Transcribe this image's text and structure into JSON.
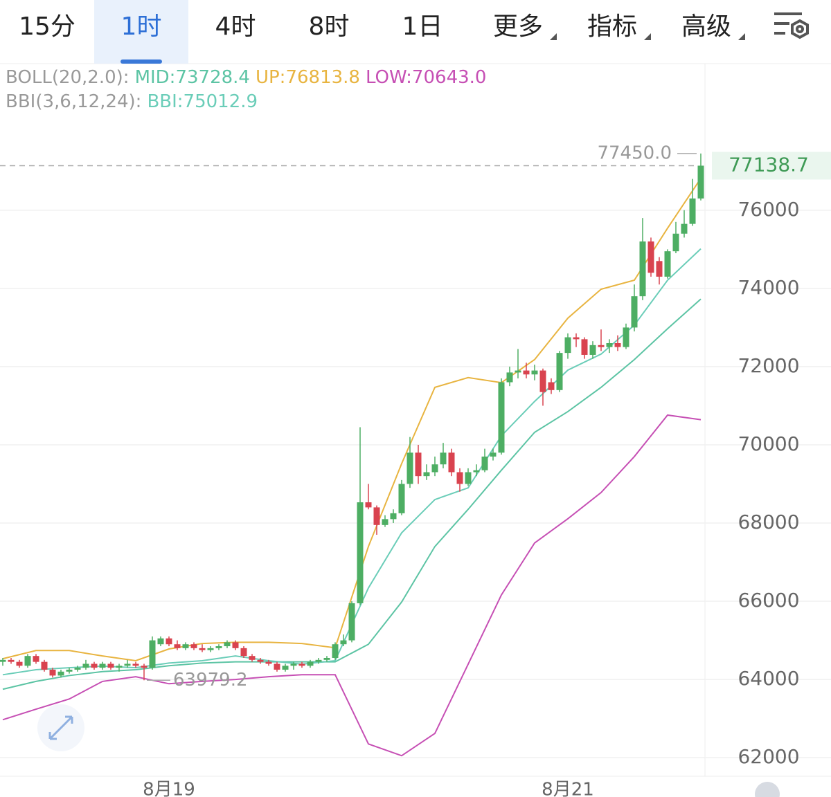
{
  "tabs": [
    "15分",
    "1时",
    "4时",
    "8时",
    "1日",
    "更多",
    "指标",
    "高级"
  ],
  "active_tab": 1,
  "chart_data": {
    "type": "candlestick",
    "categories": [
      null,
      null,
      null,
      null,
      null,
      null,
      null,
      null,
      null,
      null,
      null,
      null,
      null,
      null,
      null,
      null,
      null,
      null,
      null,
      null,
      "8月19",
      null,
      null,
      null,
      null,
      null,
      null,
      null,
      null,
      null,
      null,
      null,
      null,
      null,
      null,
      null,
      null,
      null,
      null,
      null,
      null,
      null,
      null,
      null,
      null,
      null,
      null,
      null,
      null,
      null,
      null,
      null,
      null,
      null,
      null,
      null,
      null,
      null,
      null,
      null,
      null,
      null,
      null,
      null,
      null,
      null,
      null,
      null,
      "8月21",
      null,
      null,
      null,
      null,
      null,
      null,
      null,
      null,
      null,
      null,
      null,
      null,
      null,
      null,
      null,
      null
    ],
    "open": [
      64450,
      64500,
      64450,
      64350,
      64600,
      64450,
      64250,
      64100,
      64200,
      64250,
      64300,
      64400,
      64300,
      64400,
      64300,
      64350,
      64400,
      64350,
      64300,
      64900,
      65050,
      64900,
      64800,
      64900,
      64800,
      64750,
      64800,
      64850,
      64950,
      64800,
      64600,
      64500,
      64450,
      64400,
      64250,
      64350,
      64400,
      64350,
      64450,
      64500,
      64550,
      64900,
      65000,
      65950,
      68530,
      68400,
      67950,
      68100,
      68250,
      69000,
      69800,
      69200,
      69300,
      69500,
      69800,
      69300,
      69000,
      69300,
      69350,
      69700,
      69800,
      71600,
      71850,
      71900,
      71800,
      71900,
      71600,
      71400,
      72350,
      72750,
      72700,
      72300,
      72550,
      72500,
      72600,
      72500,
      73000,
      73800,
      75200,
      74700,
      74300,
      74950,
      75400,
      75650,
      76300
    ],
    "high": [
      64550,
      64550,
      64500,
      64650,
      64650,
      64500,
      64300,
      64250,
      64300,
      64350,
      64500,
      64450,
      64450,
      64450,
      64400,
      64500,
      64450,
      64400,
      65100,
      65100,
      65100,
      65000,
      64950,
      64950,
      64900,
      64850,
      64900,
      65000,
      65000,
      64850,
      64650,
      64550,
      64500,
      64450,
      64400,
      64450,
      64450,
      64500,
      64550,
      64600,
      64950,
      65150,
      66000,
      70450,
      69000,
      68450,
      68200,
      68350,
      69100,
      70200,
      70000,
      69500,
      69700,
      70050,
      69900,
      69400,
      69400,
      69500,
      69900,
      69900,
      71700,
      72000,
      72450,
      72100,
      72050,
      71950,
      71700,
      72400,
      72850,
      72850,
      72750,
      72650,
      72950,
      72700,
      72800,
      73100,
      74100,
      75800,
      75300,
      74800,
      75000,
      75700,
      76000,
      76800,
      77450
    ],
    "low": [
      64350,
      64400,
      64300,
      64300,
      64400,
      64200,
      64050,
      64050,
      64150,
      64200,
      64250,
      64250,
      64250,
      64250,
      64200,
      64300,
      64300,
      63979.2,
      64250,
      64850,
      64850,
      64750,
      64750,
      64750,
      64700,
      64700,
      64750,
      64800,
      64750,
      64550,
      64450,
      64400,
      64350,
      64200,
      64200,
      64250,
      64300,
      64300,
      64400,
      64450,
      64500,
      64850,
      64950,
      65900,
      68350,
      67700,
      67900,
      68000,
      68200,
      68900,
      69000,
      69100,
      69200,
      69400,
      69200,
      68800,
      68950,
      69200,
      69300,
      69600,
      69750,
      71500,
      71700,
      71700,
      71650,
      71000,
      71300,
      71350,
      72200,
      72500,
      72200,
      72200,
      72400,
      72350,
      72400,
      72450,
      72900,
      73700,
      74300,
      74100,
      74250,
      74900,
      75300,
      75600,
      76250
    ],
    "close": [
      64500,
      64450,
      64350,
      64600,
      64450,
      64250,
      64100,
      64200,
      64250,
      64300,
      64400,
      64300,
      64400,
      64300,
      64350,
      64400,
      64350,
      64300,
      65000,
      65050,
      64900,
      64800,
      64900,
      64800,
      64750,
      64800,
      64850,
      64950,
      64800,
      64600,
      64500,
      64450,
      64400,
      64250,
      64350,
      64400,
      64350,
      64450,
      64500,
      64550,
      64900,
      65000,
      65950,
      68530,
      68400,
      67950,
      68100,
      68250,
      69000,
      69800,
      69200,
      69300,
      69500,
      69800,
      69300,
      69000,
      69300,
      69350,
      69700,
      69800,
      71600,
      71850,
      71900,
      71800,
      71900,
      71350,
      71400,
      72350,
      72750,
      72700,
      72300,
      72550,
      72500,
      72600,
      72500,
      73000,
      73800,
      75200,
      74400,
      74300,
      74950,
      75400,
      75650,
      76300,
      77138.7
    ],
    "up_color": "#4dae63",
    "down_color": "#d9434f",
    "indicators": [
      {
        "label": "BOLL(20,2.0):",
        "series": [
          {
            "name": "MID:73728.4",
            "color": "#5cc4a4",
            "x": [
              0,
              4,
              8,
              12,
              16,
              20,
              24,
              28,
              32,
              36,
              40,
              44,
              48,
              52,
              56,
              60,
              64,
              68,
              72,
              76,
              80,
              84
            ],
            "values": [
              63750,
              63950,
              64100,
              64200,
              64250,
              64350,
              64420,
              64450,
              64450,
              64450,
              64450,
              64900,
              65980,
              67400,
              68350,
              69350,
              70320,
              70850,
              71470,
              72180,
              72970,
              73728.4
            ]
          },
          {
            "name": "UP:76813.8",
            "color": "#e8b440",
            "x": [
              0,
              4,
              8,
              12,
              16,
              20,
              24,
              28,
              32,
              36,
              40,
              44,
              48,
              52,
              56,
              60,
              64,
              68,
              72,
              76,
              80,
              84
            ],
            "values": [
              64530,
              64740,
              64740,
              64600,
              64480,
              64780,
              64920,
              64950,
              64950,
              64920,
              64810,
              67400,
              69520,
              71470,
              71720,
              71590,
              72180,
              73240,
              73980,
              74210,
              75540,
              76813.8
            ]
          },
          {
            "name": "LOW:70643.0",
            "color": "#c64fb4",
            "x": [
              0,
              4,
              8,
              12,
              16,
              20,
              24,
              28,
              32,
              36,
              40,
              44,
              48,
              52,
              56,
              60,
              64,
              68,
              72,
              76,
              80,
              84
            ],
            "values": [
              62970,
              63240,
              63500,
              63950,
              64070,
              63890,
              63950,
              64000,
              64070,
              64120,
              64120,
              62350,
              62050,
              62620,
              64390,
              66160,
              67490,
              68110,
              68780,
              69700,
              70760,
              70643
            ]
          }
        ]
      },
      {
        "label": "BBI(3,6,12,24):",
        "series": [
          {
            "name": "BBI:75012.9",
            "color": "#6acdb8",
            "x": [
              0,
              4,
              8,
              12,
              16,
              20,
              24,
              28,
              32,
              36,
              40,
              44,
              48,
              52,
              56,
              60,
              64,
              68,
              72,
              76,
              80,
              84
            ],
            "values": [
              64120,
              64250,
              64300,
              64340,
              64300,
              64420,
              64480,
              64600,
              64480,
              64390,
              64480,
              66340,
              67750,
              68600,
              68900,
              70230,
              71110,
              71910,
              72320,
              73060,
              74210,
              75012.9
            ]
          }
        ]
      }
    ],
    "ylim": [
      61560,
      79730
    ],
    "yticks": [
      62000,
      64000,
      66000,
      68000,
      70000,
      72000,
      74000,
      76000
    ],
    "grid": true,
    "last_price": 77138.7,
    "high_mark": {
      "value": 77450,
      "label": "77450.0",
      "index": 84
    },
    "low_mark": {
      "value": 63979.2,
      "index": 17
    }
  }
}
